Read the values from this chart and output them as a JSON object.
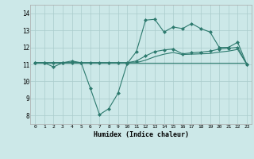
{
  "xlabel": "Humidex (Indice chaleur)",
  "background_color": "#cce8e8",
  "grid_color": "#aacccc",
  "line_color": "#2d7a6e",
  "xlim": [
    -0.5,
    23.5
  ],
  "ylim": [
    7.5,
    14.5
  ],
  "yticks": [
    8,
    9,
    10,
    11,
    12,
    13,
    14
  ],
  "xticks": [
    0,
    1,
    2,
    3,
    4,
    5,
    6,
    7,
    8,
    9,
    10,
    11,
    12,
    13,
    14,
    15,
    16,
    17,
    18,
    19,
    20,
    21,
    22,
    23
  ],
  "series1_x": [
    0,
    1,
    2,
    3,
    4,
    5,
    6,
    7,
    8,
    9,
    10,
    11,
    12,
    13,
    14,
    15,
    16,
    17,
    18,
    19,
    20,
    21,
    22,
    23
  ],
  "series1_y": [
    11.1,
    11.1,
    10.85,
    11.1,
    11.2,
    11.1,
    9.6,
    8.05,
    8.4,
    9.3,
    11.05,
    11.75,
    13.6,
    13.65,
    12.9,
    13.2,
    13.1,
    13.4,
    13.1,
    12.9,
    12.0,
    12.0,
    12.3,
    11.0
  ],
  "series2_x": [
    0,
    1,
    2,
    3,
    4,
    5,
    6,
    7,
    8,
    9,
    10,
    11,
    12,
    13,
    14,
    15,
    16,
    17,
    18,
    19,
    20,
    21,
    22,
    23
  ],
  "series2_y": [
    11.1,
    11.1,
    11.1,
    11.1,
    11.1,
    11.1,
    11.1,
    11.1,
    11.1,
    11.1,
    11.1,
    11.1,
    11.1,
    11.1,
    11.1,
    11.1,
    11.1,
    11.1,
    11.1,
    11.1,
    11.1,
    11.1,
    11.1,
    11.1
  ],
  "series3_x": [
    0,
    1,
    2,
    3,
    4,
    5,
    6,
    7,
    8,
    9,
    10,
    11,
    12,
    13,
    14,
    15,
    16,
    17,
    18,
    19,
    20,
    21,
    22,
    23
  ],
  "series3_y": [
    11.1,
    11.1,
    11.1,
    11.1,
    11.1,
    11.1,
    11.1,
    11.1,
    11.1,
    11.1,
    11.1,
    11.2,
    11.5,
    11.75,
    11.85,
    11.9,
    11.62,
    11.68,
    11.72,
    11.78,
    11.9,
    11.95,
    12.0,
    11.0
  ],
  "series4_x": [
    0,
    1,
    2,
    3,
    4,
    5,
    6,
    7,
    8,
    9,
    10,
    11,
    12,
    13,
    14,
    15,
    16,
    17,
    18,
    19,
    20,
    21,
    22,
    23
  ],
  "series4_y": [
    11.1,
    11.1,
    11.1,
    11.1,
    11.1,
    11.1,
    11.1,
    11.1,
    11.1,
    11.1,
    11.1,
    11.1,
    11.25,
    11.45,
    11.6,
    11.7,
    11.58,
    11.6,
    11.62,
    11.64,
    11.72,
    11.78,
    11.88,
    11.0
  ]
}
